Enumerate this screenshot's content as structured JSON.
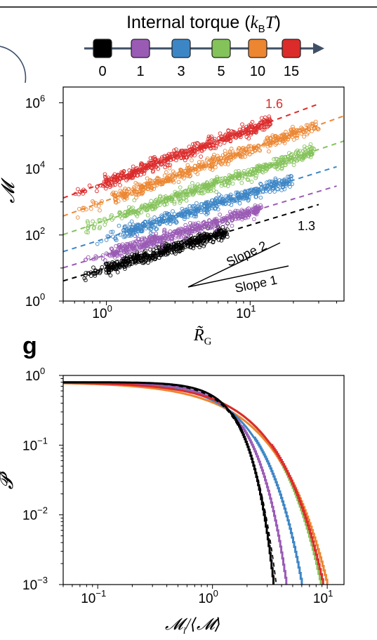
{
  "legend": {
    "title_main": "Internal torque (",
    "title_k": "k",
    "title_sub": "B",
    "title_T": "T",
    "title_close": ")",
    "items": [
      {
        "label": "0",
        "color": "#000000"
      },
      {
        "label": "1",
        "color": "#9a5bb5"
      },
      {
        "label": "3",
        "color": "#3d86c6"
      },
      {
        "label": "5",
        "color": "#84c25a"
      },
      {
        "label": "10",
        "color": "#ec8631"
      },
      {
        "label": "15",
        "color": "#dc2b2b"
      }
    ]
  },
  "panel_g_label": "g",
  "chart_data": [
    {
      "type": "scatter",
      "xlabel": "R̃",
      "xlabel_sub": "G",
      "ylabel": "𝓜",
      "x_scale": "log",
      "y_scale": "log",
      "xlim": [
        0.5,
        45
      ],
      "ylim": [
        1,
        3000000
      ],
      "x_ticks": [
        {
          "value": 1,
          "base": "10",
          "exp": "0"
        },
        {
          "value": 10,
          "base": "10",
          "exp": "1"
        }
      ],
      "y_ticks": [
        {
          "value": 1,
          "base": "10",
          "exp": "0"
        },
        {
          "value": 100,
          "base": "10",
          "exp": "2"
        },
        {
          "value": 10000,
          "base": "10",
          "exp": "4"
        },
        {
          "value": 1000000,
          "base": "10",
          "exp": "6"
        }
      ],
      "series": [
        {
          "name": "0",
          "color": "#000000",
          "x_range": [
            0.7,
            7
          ],
          "fit_x_range": [
            0.5,
            30
          ],
          "fit_prefactor": 10,
          "fit_exponent": 1.3
        },
        {
          "name": "1",
          "color": "#9a5bb5",
          "x_range": [
            0.7,
            12
          ],
          "fit_x_range": [
            0.5,
            40
          ],
          "fit_prefactor": 25,
          "fit_exponent": 1.3
        },
        {
          "name": "3",
          "color": "#3d86c6",
          "x_range": [
            0.8,
            20
          ],
          "fit_x_range": [
            0.5,
            40
          ],
          "fit_prefactor": 80,
          "fit_exponent": 1.35
        },
        {
          "name": "5",
          "color": "#84c25a",
          "x_range": [
            0.7,
            28
          ],
          "fit_x_range": [
            0.5,
            45
          ],
          "fit_prefactor": 280,
          "fit_exponent": 1.45
        },
        {
          "name": "10",
          "color": "#ec8631",
          "x_range": [
            0.6,
            30
          ],
          "fit_x_range": [
            0.5,
            45
          ],
          "fit_prefactor": 1100,
          "fit_exponent": 1.55
        },
        {
          "name": "15",
          "color": "#dc2b2b",
          "x_range": [
            0.6,
            14
          ],
          "fit_x_range": [
            0.5,
            30
          ],
          "fit_prefactor": 4000,
          "fit_exponent": 1.6
        }
      ],
      "annotations": {
        "exp_top": "1.6",
        "exp_bottom": "1.3",
        "slope2": "Slope 2",
        "slope1": "Slope 1"
      }
    },
    {
      "type": "line",
      "xlabel": "𝓜",
      "xlabel_sub": "i",
      "xlabel_suffix": "/⟨𝓜⟩",
      "ylabel": "𝓟",
      "x_scale": "log",
      "y_scale": "log",
      "xlim": [
        0.05,
        14
      ],
      "ylim": [
        0.001,
        1
      ],
      "x_ticks": [
        {
          "value": 0.1,
          "base": "10",
          "exp": "−1"
        },
        {
          "value": 1,
          "base": "10",
          "exp": "0"
        },
        {
          "value": 10,
          "base": "10",
          "exp": "1"
        }
      ],
      "y_ticks": [
        {
          "value": 0.001,
          "base": "10",
          "exp": "−3"
        },
        {
          "value": 0.01,
          "base": "10",
          "exp": "−2"
        },
        {
          "value": 0.1,
          "base": "10",
          "exp": "−1"
        },
        {
          "value": 1,
          "base": "10",
          "exp": "0"
        }
      ],
      "plateau": 0.8,
      "series": [
        {
          "name": "0",
          "color": "#000000",
          "shape": 2.2,
          "end_x": 3.4
        },
        {
          "name": "1",
          "color": "#9a5bb5",
          "shape": 1.7,
          "end_x": 4.4
        },
        {
          "name": "3",
          "color": "#3d86c6",
          "shape": 1.35,
          "end_x": 6.0
        },
        {
          "name": "5",
          "color": "#84c25a",
          "shape": 1.15,
          "end_x": 8.8
        },
        {
          "name": "10",
          "color": "#ec8631",
          "shape": 1.0,
          "end_x": 10.0
        },
        {
          "name": "15",
          "color": "#dc2b2b",
          "shape": 1.12,
          "end_x": 9.2
        }
      ],
      "dashed_reference": {
        "color": "#000000",
        "shape": 2.0,
        "end_x": 3.6
      }
    }
  ]
}
